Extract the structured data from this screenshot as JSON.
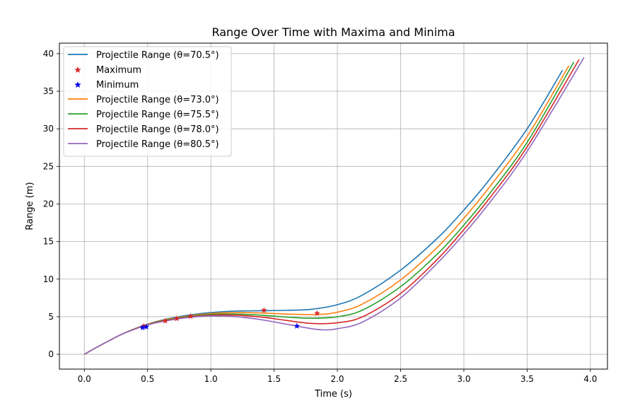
{
  "chart_data": {
    "type": "line",
    "title": "Range Over Time with Maxima and Minima",
    "xlabel": "Time (s)",
    "ylabel": "Range (m)",
    "xlim": [
      -0.197,
      4.135
    ],
    "ylim": [
      -1.97,
      41.4
    ],
    "xticks": [
      0.0,
      0.5,
      1.0,
      1.5,
      2.0,
      2.5,
      3.0,
      3.5,
      4.0
    ],
    "xtick_labels": [
      "0.0",
      "0.5",
      "1.0",
      "1.5",
      "2.0",
      "2.5",
      "3.0",
      "3.5",
      "4.0"
    ],
    "yticks": [
      0,
      5,
      10,
      15,
      20,
      25,
      30,
      35,
      40
    ],
    "ytick_labels": [
      "0",
      "5",
      "10",
      "15",
      "20",
      "25",
      "30",
      "35",
      "40"
    ],
    "grid": true,
    "legend": {
      "placement": "top-left",
      "entries": [
        {
          "label": "Projectile Range (θ=70.5°)",
          "kind": "line",
          "color": "#1f77b4"
        },
        {
          "label": "Maximum",
          "kind": "star",
          "color": "#d62728"
        },
        {
          "label": "Minimum",
          "kind": "star",
          "color": "#0000ee"
        },
        {
          "label": "Projectile Range (θ=73.0°)",
          "kind": "line",
          "color": "#ff7f0e"
        },
        {
          "label": "Projectile Range (θ=75.5°)",
          "kind": "line",
          "color": "#2ca02c"
        },
        {
          "label": "Projectile Range (θ=78.0°)",
          "kind": "line",
          "color": "#d62728"
        },
        {
          "label": "Projectile Range (θ=80.5°)",
          "kind": "line",
          "color": "#9467bd"
        }
      ]
    },
    "series": [
      {
        "name": "Projectile Range (θ=70.5°)",
        "color": "#1f77b4",
        "x": [
          0,
          0.1,
          0.2,
          0.3,
          0.4,
          0.5,
          0.6,
          0.8,
          1.0,
          1.2,
          1.4,
          1.6,
          1.8,
          2.0,
          2.2,
          2.5,
          2.8,
          3.0,
          3.2,
          3.5,
          3.78
        ],
        "y": [
          0,
          0.95,
          1.85,
          2.7,
          3.4,
          4.0,
          4.5,
          5.15,
          5.55,
          5.75,
          5.8,
          5.85,
          6.0,
          6.6,
          7.9,
          11.2,
          15.6,
          19.2,
          23.2,
          30.0,
          37.8
        ]
      },
      {
        "name": "Projectile Range (θ=73.0°)",
        "color": "#ff7f0e",
        "x": [
          0,
          0.1,
          0.2,
          0.3,
          0.4,
          0.5,
          0.6,
          0.8,
          1.0,
          1.2,
          1.4,
          1.6,
          1.84,
          2.0,
          2.2,
          2.5,
          2.8,
          3.0,
          3.2,
          3.5,
          3.83
        ],
        "y": [
          0,
          0.95,
          1.85,
          2.7,
          3.4,
          3.98,
          4.45,
          5.05,
          5.42,
          5.55,
          5.5,
          5.35,
          5.3,
          5.6,
          6.7,
          9.9,
          14.4,
          18.1,
          22.2,
          29.0,
          38.4
        ]
      },
      {
        "name": "Projectile Range (θ=75.5°)",
        "color": "#2ca02c",
        "x": [
          0,
          0.1,
          0.2,
          0.3,
          0.4,
          0.5,
          0.6,
          0.8,
          1.0,
          1.2,
          1.4,
          1.6,
          1.8,
          2.0,
          2.2,
          2.5,
          2.8,
          3.0,
          3.2,
          3.5,
          3.87
        ],
        "y": [
          0,
          0.95,
          1.85,
          2.7,
          3.4,
          3.95,
          4.4,
          4.98,
          5.3,
          5.35,
          5.2,
          4.95,
          4.8,
          5.0,
          5.9,
          9.0,
          13.5,
          17.2,
          21.3,
          28.2,
          38.9
        ]
      },
      {
        "name": "Projectile Range (θ=78.0°)",
        "color": "#d62728",
        "x": [
          0,
          0.1,
          0.2,
          0.3,
          0.4,
          0.5,
          0.6,
          0.8,
          1.0,
          1.2,
          1.4,
          1.6,
          1.8,
          2.0,
          2.2,
          2.5,
          2.8,
          3.0,
          3.2,
          3.5,
          3.91
        ],
        "y": [
          0,
          0.95,
          1.85,
          2.7,
          3.38,
          3.92,
          4.35,
          4.9,
          5.2,
          5.2,
          4.95,
          4.5,
          4.1,
          4.2,
          5.0,
          8.1,
          12.8,
          16.6,
          20.7,
          27.6,
          39.2
        ]
      },
      {
        "name": "Projectile Range (θ=80.5°)",
        "color": "#9467bd",
        "x": [
          0,
          0.1,
          0.2,
          0.3,
          0.4,
          0.5,
          0.6,
          0.8,
          1.0,
          1.2,
          1.4,
          1.6,
          1.8,
          1.9,
          2.0,
          2.2,
          2.5,
          2.8,
          3.0,
          3.2,
          3.5,
          3.95
        ],
        "y": [
          0,
          0.95,
          1.85,
          2.7,
          3.35,
          3.9,
          4.3,
          4.85,
          5.1,
          5.0,
          4.6,
          4.0,
          3.4,
          3.25,
          3.4,
          4.3,
          7.5,
          12.3,
          16.0,
          20.1,
          27.0,
          39.5
        ]
      }
    ],
    "maxima": {
      "name": "Maximum",
      "color": "#d62728",
      "points": [
        [
          0.47,
          3.75
        ],
        [
          0.64,
          4.45
        ],
        [
          0.73,
          4.75
        ],
        [
          0.84,
          5.05
        ],
        [
          1.42,
          5.85
        ],
        [
          1.84,
          5.45
        ]
      ]
    },
    "minima": {
      "name": "Minimum",
      "color": "#0000ee",
      "points": [
        [
          0.46,
          3.55
        ],
        [
          0.49,
          3.65
        ],
        [
          1.68,
          3.75
        ]
      ]
    }
  }
}
